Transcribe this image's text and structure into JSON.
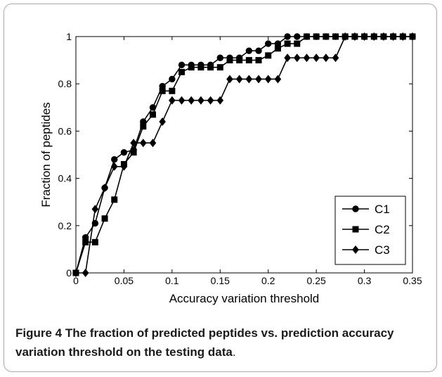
{
  "chart_data": {
    "type": "line",
    "title": "",
    "xlabel": "Accuracy variation threshold",
    "ylabel": "Fraction of peptides",
    "xlim": [
      0,
      0.35
    ],
    "ylim": [
      0,
      1
    ],
    "xticks": [
      0,
      0.05,
      0.1,
      0.15,
      0.2,
      0.25,
      0.3,
      0.35
    ],
    "xtick_labels": [
      "0",
      "0.05",
      "0.1",
      "0.15",
      "0.2",
      "0.25",
      "0.3",
      "0.35"
    ],
    "yticks": [
      0,
      0.2,
      0.4,
      0.6,
      0.8,
      1
    ],
    "ytick_labels": [
      "0",
      "0.2",
      "0.4",
      "0.6",
      "0.8",
      "1"
    ],
    "grid": false,
    "legend": "bottom-right",
    "series": [
      {
        "name": "C1",
        "marker": "circle",
        "x": [
          0,
          0.01,
          0.02,
          0.03,
          0.04,
          0.05,
          0.06,
          0.07,
          0.08,
          0.09,
          0.1,
          0.11,
          0.12,
          0.13,
          0.14,
          0.15,
          0.16,
          0.17,
          0.18,
          0.19,
          0.2,
          0.21,
          0.22,
          0.23,
          0.24,
          0.25,
          0.26,
          0.27,
          0.28,
          0.29,
          0.3,
          0.31,
          0.32,
          0.33,
          0.34,
          0.35
        ],
        "y": [
          0,
          0.15,
          0.21,
          0.36,
          0.48,
          0.51,
          0.52,
          0.64,
          0.7,
          0.79,
          0.82,
          0.88,
          0.88,
          0.88,
          0.88,
          0.91,
          0.91,
          0.91,
          0.94,
          0.94,
          0.97,
          0.97,
          1,
          1,
          1,
          1,
          1,
          1,
          1,
          1,
          1,
          1,
          1,
          1,
          1,
          1
        ]
      },
      {
        "name": "C2",
        "marker": "square",
        "x": [
          0,
          0.01,
          0.02,
          0.03,
          0.04,
          0.05,
          0.06,
          0.07,
          0.08,
          0.09,
          0.1,
          0.11,
          0.12,
          0.13,
          0.14,
          0.15,
          0.16,
          0.17,
          0.18,
          0.19,
          0.2,
          0.21,
          0.22,
          0.23,
          0.24,
          0.25,
          0.26,
          0.27,
          0.28,
          0.29,
          0.3,
          0.31,
          0.32,
          0.33,
          0.34,
          0.35
        ],
        "y": [
          0,
          0.13,
          0.13,
          0.23,
          0.31,
          0.46,
          0.51,
          0.62,
          0.67,
          0.77,
          0.77,
          0.85,
          0.87,
          0.87,
          0.87,
          0.87,
          0.9,
          0.9,
          0.9,
          0.9,
          0.92,
          0.95,
          0.97,
          0.97,
          1,
          1,
          1,
          1,
          1,
          1,
          1,
          1,
          1,
          1,
          1,
          1
        ]
      },
      {
        "name": "C3",
        "marker": "diamond",
        "x": [
          0,
          0.01,
          0.02,
          0.03,
          0.04,
          0.05,
          0.06,
          0.07,
          0.08,
          0.09,
          0.1,
          0.11,
          0.12,
          0.13,
          0.14,
          0.15,
          0.16,
          0.17,
          0.18,
          0.19,
          0.2,
          0.21,
          0.22,
          0.23,
          0.24,
          0.25,
          0.26,
          0.27,
          0.28,
          0.29,
          0.3,
          0.31,
          0.32,
          0.33,
          0.34,
          0.35
        ],
        "y": [
          0,
          0,
          0.27,
          0.36,
          0.45,
          0.45,
          0.55,
          0.55,
          0.55,
          0.64,
          0.73,
          0.73,
          0.73,
          0.73,
          0.73,
          0.73,
          0.82,
          0.82,
          0.82,
          0.82,
          0.82,
          0.82,
          0.91,
          0.91,
          0.91,
          0.91,
          0.91,
          0.91,
          1,
          1,
          1,
          1,
          1,
          1,
          1,
          1
        ]
      }
    ]
  },
  "caption": {
    "label": "Figure 4",
    "title": "The fraction of predicted peptides vs. prediction accuracy variation threshold on the testing data",
    "tail": "."
  }
}
